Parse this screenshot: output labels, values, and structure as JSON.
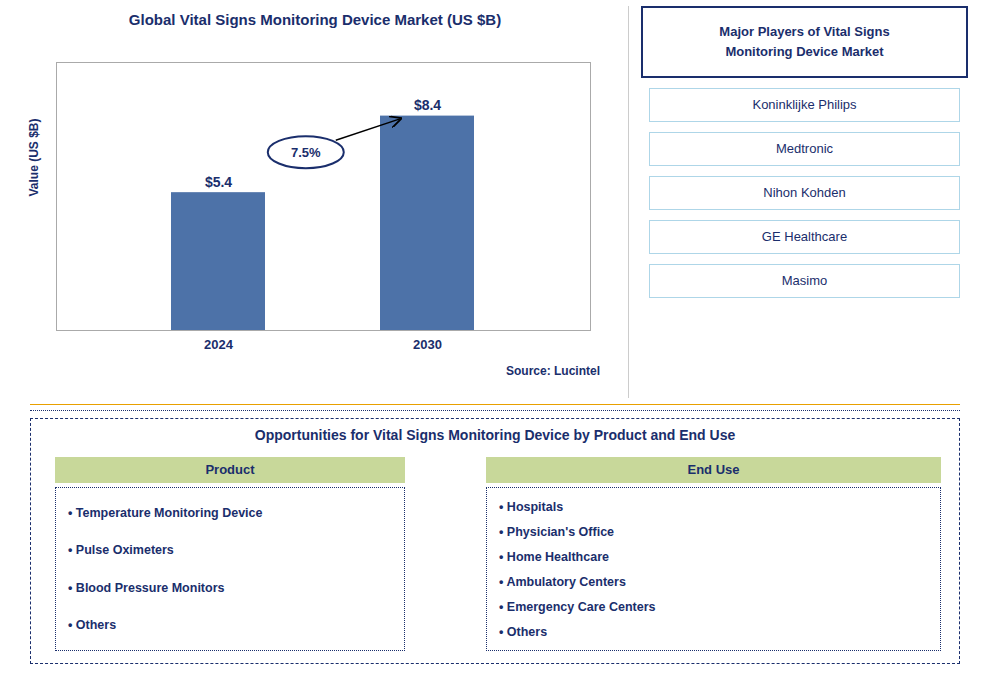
{
  "chart_data": {
    "type": "bar",
    "title": "Global Vital Signs Monitoring Device Market (US $B)",
    "categories": [
      "2024",
      "2030"
    ],
    "values": [
      5.4,
      8.4
    ],
    "value_labels": [
      "$5.4",
      "$8.4"
    ],
    "data_labels": true,
    "color": "#4d72a8",
    "ylabel": "Value (US $B)",
    "ylim": [
      0,
      10.5
    ],
    "tick_labels": "x",
    "annotations": [
      "7.5%"
    ],
    "caption": "Source: Lucintel",
    "side_panel": {
      "title": "Major Players of Vital Signs\nMonitoring Device Market",
      "items": [
        "Koninklijke Philips",
        "Medtronic",
        "Nihon Kohden",
        "GE Healthcare",
        "Masimo"
      ]
    },
    "bottom_panel": {
      "title": "Opportunities for Vital Signs Monitoring Device by Product and End Use",
      "columns": [
        {
          "header": "Product",
          "items": [
            "• Temperature Monitoring Device",
            "• Pulse Oximeters",
            "• Blood Pressure Monitors",
            "• Others"
          ]
        },
        {
          "header": "End Use",
          "items": [
            "• Hospitals",
            "• Physician's Office",
            "• Home Healthcare",
            "• Ambulatory Centers",
            "• Emergency Care Centers",
            "• Others"
          ]
        }
      ]
    }
  }
}
